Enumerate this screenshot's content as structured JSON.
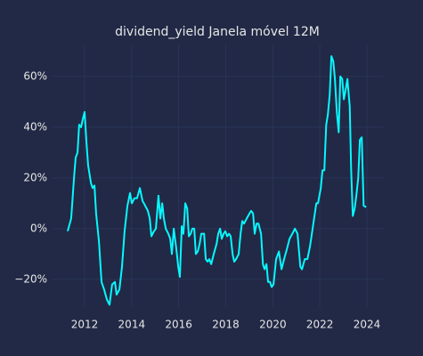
{
  "chart_data": {
    "type": "line",
    "title": "dividend_yield Janela móvel 12M",
    "color": "#08f7fe",
    "grid": true,
    "xlim": [
      2010.6,
      2024.68
    ],
    "xticks": [
      2012,
      2014,
      2016,
      2018,
      2020,
      2022,
      2024
    ],
    "ylim": [
      -30.9,
      72.6
    ],
    "yticks": [
      {
        "value": -20,
        "label": "−20%"
      },
      {
        "value": 0,
        "label": "0%"
      },
      {
        "value": 20,
        "label": "20%"
      },
      {
        "value": 40,
        "label": "40%"
      },
      {
        "value": 60,
        "label": "60%"
      }
    ],
    "x": [
      2011.28,
      2011.43,
      2011.55,
      2011.62,
      2011.7,
      2011.77,
      2011.85,
      2011.92,
      2012.0,
      2012.08,
      2012.15,
      2012.27,
      2012.34,
      2012.42,
      2012.49,
      2012.61,
      2012.72,
      2012.83,
      2012.95,
      2013.06,
      2013.17,
      2013.29,
      2013.36,
      2013.48,
      2013.59,
      2013.7,
      2013.82,
      2013.93,
      2014.01,
      2014.12,
      2014.23,
      2014.35,
      2014.46,
      2014.58,
      2014.69,
      2014.77,
      2014.84,
      2014.95,
      2015.03,
      2015.14,
      2015.22,
      2015.3,
      2015.37,
      2015.45,
      2015.56,
      2015.64,
      2015.71,
      2015.79,
      2015.9,
      2015.98,
      2016.05,
      2016.13,
      2016.2,
      2016.28,
      2016.36,
      2016.43,
      2016.51,
      2016.58,
      2016.66,
      2016.73,
      2016.81,
      2016.89,
      2016.96,
      2017.08,
      2017.15,
      2017.23,
      2017.3,
      2017.38,
      2017.49,
      2017.61,
      2017.68,
      2017.76,
      2017.83,
      2017.91,
      2017.98,
      2018.06,
      2018.14,
      2018.21,
      2018.29,
      2018.36,
      2018.44,
      2018.55,
      2018.63,
      2018.7,
      2018.78,
      2018.89,
      2019.01,
      2019.08,
      2019.16,
      2019.23,
      2019.31,
      2019.39,
      2019.5,
      2019.58,
      2019.65,
      2019.73,
      2019.8,
      2019.88,
      2019.95,
      2020.03,
      2020.14,
      2020.26,
      2020.37,
      2020.48,
      2020.6,
      2020.71,
      2020.83,
      2020.94,
      2021.05,
      2021.17,
      2021.24,
      2021.36,
      2021.47,
      2021.58,
      2021.66,
      2021.77,
      2021.85,
      2021.92,
      2022.04,
      2022.11,
      2022.19,
      2022.27,
      2022.34,
      2022.42,
      2022.49,
      2022.57,
      2022.64,
      2022.72,
      2022.8,
      2022.87,
      2022.95,
      2023.02,
      2023.1,
      2023.17,
      2023.27,
      2023.33,
      2023.4,
      2023.48,
      2023.55,
      2023.63,
      2023.7,
      2023.78,
      2023.86,
      2023.97
    ],
    "values": [
      -1,
      4,
      20,
      28,
      30,
      41,
      40,
      43,
      46,
      34,
      25,
      18,
      16,
      17,
      6,
      -5,
      -21,
      -24,
      -28,
      -30,
      -22,
      -21,
      -26,
      -24,
      -15,
      -1,
      9,
      14,
      10,
      12,
      12,
      16,
      11,
      9,
      7,
      4,
      -3,
      -1,
      0,
      13,
      4,
      10,
      4,
      0,
      -2,
      -4,
      -10,
      0,
      -8,
      -15,
      -19,
      1,
      -2,
      10,
      8,
      -3,
      -2,
      0,
      0,
      -10,
      -9,
      -6,
      -2,
      -2,
      -12,
      -13,
      -12,
      -14,
      -10,
      -6,
      -2,
      0,
      -4,
      -2,
      -1,
      -3,
      -2,
      -3,
      -10,
      -13,
      -12,
      -10,
      -2,
      3,
      2,
      4,
      6,
      7,
      6,
      -2,
      2,
      2,
      -2,
      -14,
      -16,
      -14,
      -21,
      -21,
      -23,
      -22,
      -12,
      -9,
      -16,
      -12,
      -8,
      -4,
      -2,
      0,
      -2,
      -15,
      -16,
      -12,
      -12,
      -7,
      -2,
      5,
      10,
      10,
      16,
      23,
      23,
      41,
      45,
      53,
      68,
      66,
      59,
      46,
      38,
      60,
      59,
      51,
      55,
      59,
      48,
      23,
      5,
      8,
      13,
      20,
      35,
      36,
      9,
      8.5
    ]
  }
}
